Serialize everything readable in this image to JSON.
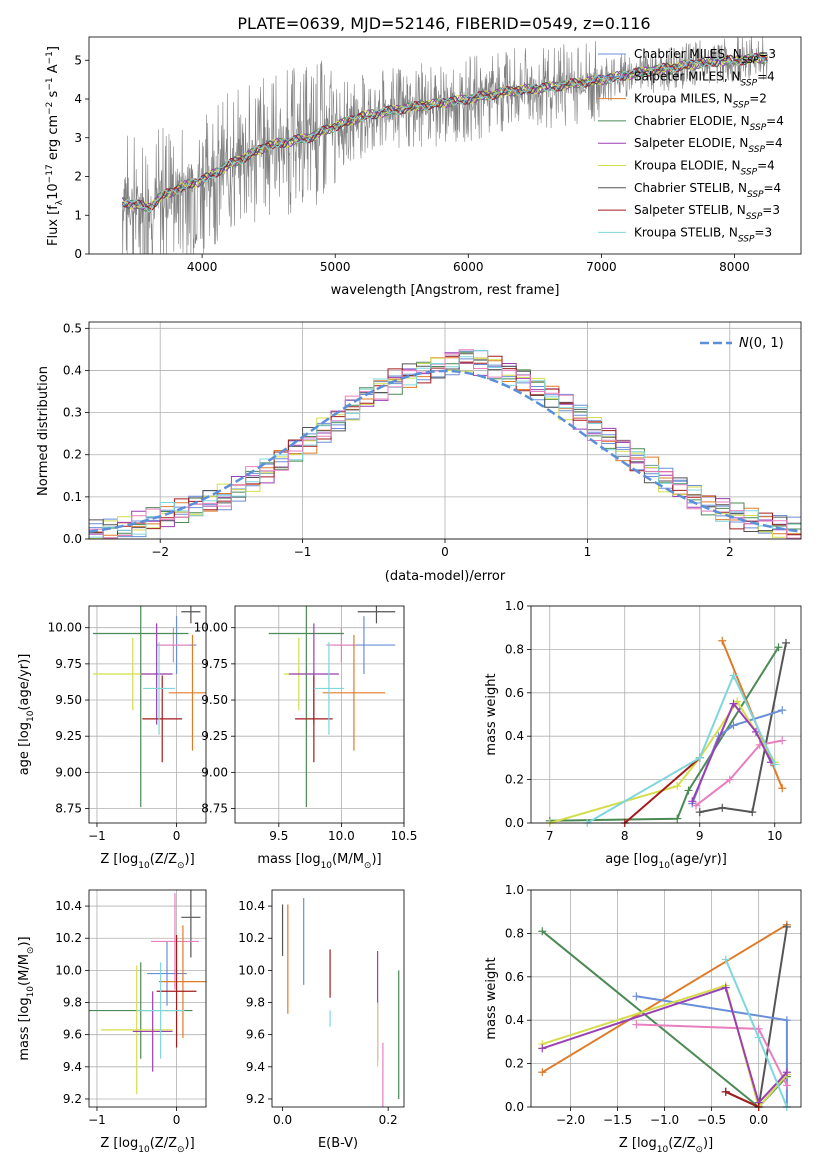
{
  "figure": {
    "title": "PLATE=0639, MJD=52146, FIBERID=0549, z=0.116"
  },
  "colors": {
    "Chabrier MILES": "#6a8fd8",
    "Salpeter MILES": "#6a8fd8",
    "Kroupa MILES": "#e07b28",
    "Chabrier ELODIE": "#4c8a55",
    "Salpeter ELODIE": "#9b3fb5",
    "Kroupa ELODIE": "#d4dd4b",
    "Chabrier STELIB": "#555555",
    "Salpeter STELIB": "#a31c1c",
    "Kroupa STELIB": "#7fd6dd",
    "pink": "#e87fbf",
    "data": "#808080",
    "normal": "#5b8fd8"
  },
  "chart_data": [
    {
      "id": "spectrum",
      "type": "line",
      "xlabel": "wavelength [Angstrom, rest frame]",
      "ylabel": "Flux [f_λ10^-17 erg cm^-2 s^-1 A^-1]",
      "xlim": [
        3150,
        8500
      ],
      "ylim": [
        0,
        5.6
      ],
      "xticks": [
        4000,
        5000,
        6000,
        7000,
        8000
      ],
      "yticks": [
        0,
        1,
        2,
        3,
        4,
        5
      ],
      "legend": [
        {
          "name": "Chabrier MILES, N_SSP=3",
          "color": "#6a8fd8"
        },
        {
          "name": "Salpeter MILES, N_SSP=4",
          "color": "#6a8fd8"
        },
        {
          "name": "Kroupa MILES, N_SSP=2",
          "color": "#e07b28"
        },
        {
          "name": "Chabrier ELODIE, N_SSP=4",
          "color": "#4c8a55"
        },
        {
          "name": "Salpeter ELODIE, N_SSP=4",
          "color": "#9b3fb5"
        },
        {
          "name": "Kroupa ELODIE, N_SSP=4",
          "color": "#d4dd4b"
        },
        {
          "name": "Chabrier STELIB, N_SSP=4",
          "color": "#555555"
        },
        {
          "name": "Salpeter STELIB, N_SSP=3",
          "color": "#a31c1c"
        },
        {
          "name": "Kroupa STELIB, N_SSP=3",
          "color": "#7fd6dd"
        }
      ],
      "continuum": [
        [
          3400,
          1.35
        ],
        [
          3600,
          1.2
        ],
        [
          3700,
          1.5
        ],
        [
          3800,
          1.65
        ],
        [
          3900,
          1.8
        ],
        [
          4000,
          1.9
        ],
        [
          4200,
          2.3
        ],
        [
          4500,
          2.8
        ],
        [
          4800,
          3.0
        ],
        [
          5000,
          3.3
        ],
        [
          5200,
          3.55
        ],
        [
          5500,
          3.75
        ],
        [
          5800,
          3.9
        ],
        [
          6000,
          4.0
        ],
        [
          6300,
          4.2
        ],
        [
          6600,
          4.3
        ],
        [
          7000,
          4.5
        ],
        [
          7400,
          4.75
        ],
        [
          7800,
          4.95
        ],
        [
          8000,
          5.0
        ],
        [
          8200,
          5.05
        ]
      ]
    },
    {
      "id": "residuals",
      "type": "line",
      "xlabel": "(data-model)/error",
      "ylabel": "Normed distribution",
      "xlim": [
        -2.5,
        2.5
      ],
      "ylim": [
        0,
        0.515
      ],
      "xticks": [
        -2,
        -1,
        0,
        1,
        2
      ],
      "yticks": [
        0.0,
        0.1,
        0.2,
        0.3,
        0.4,
        0.5
      ],
      "legend": "$\\mathcal{N}(0,1)$",
      "normal_label": "N(0, 1)",
      "bin_width": 0.1,
      "histogram_envelope": [
        0.015,
        0.02,
        0.028,
        0.035,
        0.045,
        0.055,
        0.065,
        0.075,
        0.09,
        0.1,
        0.12,
        0.14,
        0.16,
        0.185,
        0.21,
        0.235,
        0.26,
        0.285,
        0.31,
        0.335,
        0.355,
        0.375,
        0.39,
        0.4,
        0.41,
        0.42,
        0.425,
        0.42,
        0.41,
        0.395,
        0.38,
        0.36,
        0.34,
        0.315,
        0.29,
        0.265,
        0.24,
        0.215,
        0.19,
        0.165,
        0.14,
        0.12,
        0.1,
        0.085,
        0.07,
        0.055,
        0.045,
        0.035,
        0.028,
        0.02
      ]
    },
    {
      "id": "age-vs-Z",
      "type": "scatter",
      "xlabel": "Z [log10(Z/Z⊙)]",
      "ylabel": "age  [log10(age/yr)]",
      "xlim": [
        -1.1,
        0.37
      ],
      "ylim": [
        8.65,
        10.15
      ],
      "xticks": [
        -1,
        0
      ],
      "yticks": [
        8.75,
        9.0,
        9.25,
        9.5,
        9.75,
        10.0
      ],
      "points": [
        {
          "color": "#555555",
          "x": 0.18,
          "xerr": 0.12,
          "y": 10.11,
          "yerr": 0.08
        },
        {
          "color": "#6a8fd8",
          "x": 0.0,
          "xerr": 0.25,
          "y": 9.88,
          "yerr": 0.2
        },
        {
          "color": "#e87fbf",
          "x": -0.04,
          "xerr": 0.2,
          "y": 9.88,
          "yerr": 0.12
        },
        {
          "color": "#4c8a55",
          "x": -0.45,
          "xerr": 0.6,
          "y": 9.96,
          "yerr": 1.2
        },
        {
          "color": "#e07b28",
          "x": 0.2,
          "xerr": 0.3,
          "y": 9.55,
          "yerr": 0.4
        },
        {
          "color": "#d4dd4b",
          "x": -0.55,
          "xerr": 0.5,
          "y": 9.68,
          "yerr": 0.25
        },
        {
          "color": "#9b3fb5",
          "x": -0.25,
          "xerr": 0.2,
          "y": 9.68,
          "yerr": 0.35
        },
        {
          "color": "#a31c1c",
          "x": -0.18,
          "xerr": 0.25,
          "y": 9.37,
          "yerr": 0.3
        },
        {
          "color": "#7fd6dd",
          "x": -0.22,
          "xerr": 0.2,
          "y": 9.58,
          "yerr": 0.32
        }
      ]
    },
    {
      "id": "age-vs-mass",
      "type": "scatter",
      "xlabel": "mass [log10(M/M⊙)]",
      "ylabel": "",
      "xlim": [
        9.15,
        10.5
      ],
      "ylim": [
        8.65,
        10.15
      ],
      "xticks": [
        9.5,
        10.0,
        10.5
      ],
      "xtick_labels": [
        "9.5",
        "10.0",
        "10.5"
      ],
      "yticks": [
        8.75,
        9.0,
        9.25,
        9.5,
        9.75,
        10.0
      ],
      "points": [
        {
          "color": "#555555",
          "x": 10.28,
          "xerr": 0.15,
          "y": 10.11,
          "yerr": 0.08
        },
        {
          "color": "#6a8fd8",
          "x": 10.18,
          "xerr": 0.25,
          "y": 9.88,
          "yerr": 0.2
        },
        {
          "color": "#e87fbf",
          "x": 10.0,
          "xerr": 0.12,
          "y": 9.88,
          "yerr": 0.12
        },
        {
          "color": "#4c8a55",
          "x": 9.72,
          "xerr": 0.3,
          "y": 9.96,
          "yerr": 1.2
        },
        {
          "color": "#e07b28",
          "x": 10.1,
          "xerr": 0.25,
          "y": 9.55,
          "yerr": 0.4
        },
        {
          "color": "#d4dd4b",
          "x": 9.66,
          "xerr": 0.12,
          "y": 9.68,
          "yerr": 0.25
        },
        {
          "color": "#9b3fb5",
          "x": 9.78,
          "xerr": 0.2,
          "y": 9.68,
          "yerr": 0.35
        },
        {
          "color": "#a31c1c",
          "x": 9.78,
          "xerr": 0.15,
          "y": 9.37,
          "yerr": 0.3
        },
        {
          "color": "#7fd6dd",
          "x": 9.9,
          "xerr": 0.12,
          "y": 9.58,
          "yerr": 0.32
        }
      ]
    },
    {
      "id": "weight-vs-age",
      "type": "line",
      "xlabel": "age  [log10(age/yr)]",
      "ylabel": "mass weight",
      "xlim": [
        6.75,
        10.35
      ],
      "ylim": [
        0,
        1.0
      ],
      "xticks": [
        7,
        8,
        9,
        10
      ],
      "yticks": [
        0.0,
        0.2,
        0.4,
        0.6,
        0.8,
        1.0
      ],
      "series": [
        {
          "color": "#e07b28",
          "points": [
            [
              9.3,
              0.84
            ],
            [
              10.1,
              0.16
            ]
          ]
        },
        {
          "color": "#4c8a55",
          "points": [
            [
              7.0,
              0.01
            ],
            [
              8.7,
              0.02
            ],
            [
              8.85,
              0.15
            ],
            [
              10.05,
              0.81
            ]
          ]
        },
        {
          "color": "#555555",
          "points": [
            [
              9.0,
              0.05
            ],
            [
              9.3,
              0.07
            ],
            [
              9.7,
              0.05
            ],
            [
              10.15,
              0.83
            ]
          ]
        },
        {
          "color": "#6a8fd8",
          "points": [
            [
              8.9,
              0.09
            ],
            [
              9.25,
              0.4
            ],
            [
              9.45,
              0.45
            ],
            [
              10.1,
              0.52
            ]
          ]
        },
        {
          "color": "#e87fbf",
          "points": [
            [
              8.95,
              0.08
            ],
            [
              9.4,
              0.2
            ],
            [
              9.8,
              0.36
            ],
            [
              10.1,
              0.38
            ]
          ]
        },
        {
          "color": "#d4dd4b",
          "points": [
            [
              7.0,
              0.0
            ],
            [
              8.7,
              0.17
            ],
            [
              9.0,
              0.3
            ],
            [
              9.5,
              0.56
            ],
            [
              10.0,
              0.28
            ]
          ]
        },
        {
          "color": "#9b3fb5",
          "points": [
            [
              8.9,
              0.1
            ],
            [
              9.45,
              0.55
            ],
            [
              9.75,
              0.42
            ],
            [
              9.95,
              0.28
            ]
          ]
        },
        {
          "color": "#a31c1c",
          "points": [
            [
              8.0,
              0.0
            ],
            [
              9.0,
              0.3
            ]
          ]
        },
        {
          "color": "#7fd6dd",
          "points": [
            [
              7.5,
              0.0
            ],
            [
              9.0,
              0.3
            ],
            [
              9.45,
              0.68
            ],
            [
              10.0,
              0.27
            ]
          ]
        }
      ]
    },
    {
      "id": "mass-vs-Z",
      "type": "scatter",
      "xlabel": "Z [log10(Z/Z⊙)]",
      "ylabel": "mass [log10(M/M⊙)]",
      "xlim": [
        -1.1,
        0.37
      ],
      "ylim": [
        9.15,
        10.5
      ],
      "xticks": [
        -1,
        0
      ],
      "yticks": [
        9.2,
        9.4,
        9.6,
        9.8,
        10.0,
        10.2,
        10.4
      ],
      "points": [
        {
          "color": "#555555",
          "x": 0.18,
          "xerr": 0.12,
          "y": 10.33,
          "yerr": 0.25
        },
        {
          "color": "#6a8fd8",
          "x": -0.12,
          "xerr": 0.25,
          "y": 9.98,
          "yerr": 0.2
        },
        {
          "color": "#e87fbf",
          "x": -0.02,
          "xerr": 0.3,
          "y": 10.18,
          "yerr": 0.3
        },
        {
          "color": "#4c8a55",
          "x": -0.45,
          "xerr": 0.65,
          "y": 9.75,
          "yerr": 0.3
        },
        {
          "color": "#e07b28",
          "x": 0.08,
          "xerr": 0.3,
          "y": 9.93,
          "yerr": 0.35
        },
        {
          "color": "#d4dd4b",
          "x": -0.5,
          "xerr": 0.45,
          "y": 9.63,
          "yerr": 0.4
        },
        {
          "color": "#9b3fb5",
          "x": -0.3,
          "xerr": 0.25,
          "y": 9.62,
          "yerr": 0.25
        },
        {
          "color": "#a31c1c",
          "x": 0.0,
          "xerr": 0.25,
          "y": 9.87,
          "yerr": 0.35
        },
        {
          "color": "#7fd6dd",
          "x": -0.2,
          "xerr": 0.3,
          "y": 9.75,
          "yerr": 0.3
        }
      ]
    },
    {
      "id": "mass-vs-ebv",
      "type": "scatter",
      "xlabel": "E(B-V)",
      "ylabel": "",
      "xlim": [
        -0.02,
        0.23
      ],
      "ylim": [
        9.15,
        10.5
      ],
      "xticks": [
        0.0,
        0.2
      ],
      "xtick_labels": [
        "0.0",
        "0.2"
      ],
      "yticks": [
        9.2,
        9.4,
        9.6,
        9.8,
        10.0,
        10.2,
        10.4
      ],
      "points": [
        {
          "color": "#e07b28",
          "x": 0.01,
          "xerr": 0,
          "y": 10.07,
          "yerr": 0.34
        },
        {
          "color": "#555555",
          "x": 0.0,
          "xerr": 0,
          "y": 10.25,
          "yerr": 0.16
        },
        {
          "color": "#6a8fd8",
          "x": 0.04,
          "xerr": 0,
          "y": 10.18,
          "yerr": 0.27
        },
        {
          "color": "#a31c1c",
          "x": 0.09,
          "xerr": 0,
          "y": 9.98,
          "yerr": 0.15
        },
        {
          "color": "#7fd6dd",
          "x": 0.09,
          "xerr": 0,
          "y": 9.7,
          "yerr": 0.05
        },
        {
          "color": "#9b3fb5",
          "x": 0.18,
          "xerr": 0,
          "y": 9.78,
          "yerr": 0.34
        },
        {
          "color": "#d4dd4b",
          "x": 0.18,
          "xerr": 0,
          "y": 9.6,
          "yerr": 0.2
        },
        {
          "color": "#e87fbf",
          "x": 0.19,
          "xerr": 0,
          "y": 9.35,
          "yerr": 0.2
        },
        {
          "color": "#4c8a55",
          "x": 0.22,
          "xerr": 0,
          "y": 9.6,
          "yerr": 0.4
        }
      ]
    },
    {
      "id": "weight-vs-Z",
      "type": "line",
      "xlabel": "Z [log10(Z/Z⊙)]",
      "ylabel": "mass weight",
      "xlim": [
        -2.42,
        0.45
      ],
      "ylim": [
        0,
        1.0
      ],
      "xticks": [
        -2.0,
        -1.5,
        -1.0,
        -0.5,
        0.0
      ],
      "xtick_labels": [
        "−2.0",
        "−1.5",
        "−1.0",
        "−0.5",
        "0.0"
      ],
      "yticks": [
        0.0,
        0.2,
        0.4,
        0.6,
        0.8,
        1.0
      ],
      "series": [
        {
          "color": "#e07b28",
          "points": [
            [
              -2.3,
              0.16
            ],
            [
              0.3,
              0.84
            ]
          ]
        },
        {
          "color": "#4c8a55",
          "points": [
            [
              -2.3,
              0.81
            ],
            [
              0.0,
              0.0
            ],
            [
              0.3,
              0.14
            ]
          ]
        },
        {
          "color": "#555555",
          "points": [
            [
              -0.35,
              0.07
            ],
            [
              0.0,
              0.0
            ],
            [
              0.3,
              0.83
            ]
          ]
        },
        {
          "color": "#6a8fd8",
          "points": [
            [
              -1.3,
              0.51
            ],
            [
              0.3,
              0.4
            ],
            [
              0.3,
              0.0
            ]
          ]
        },
        {
          "color": "#e87fbf",
          "points": [
            [
              -1.3,
              0.38
            ],
            [
              0.0,
              0.36
            ],
            [
              0.3,
              0.1
            ]
          ]
        },
        {
          "color": "#d4dd4b",
          "points": [
            [
              -2.3,
              0.29
            ],
            [
              -0.35,
              0.56
            ],
            [
              0.0,
              0.0
            ],
            [
              0.3,
              0.15
            ]
          ]
        },
        {
          "color": "#9b3fb5",
          "points": [
            [
              -2.3,
              0.27
            ],
            [
              -0.35,
              0.55
            ],
            [
              0.0,
              0.02
            ],
            [
              0.3,
              0.16
            ]
          ]
        },
        {
          "color": "#a31c1c",
          "points": [
            [
              -0.35,
              0.07
            ],
            [
              0.0,
              0.0
            ]
          ]
        },
        {
          "color": "#7fd6dd",
          "points": [
            [
              -0.35,
              0.68
            ],
            [
              0.0,
              0.32
            ],
            [
              0.3,
              0.0
            ]
          ]
        }
      ]
    }
  ]
}
